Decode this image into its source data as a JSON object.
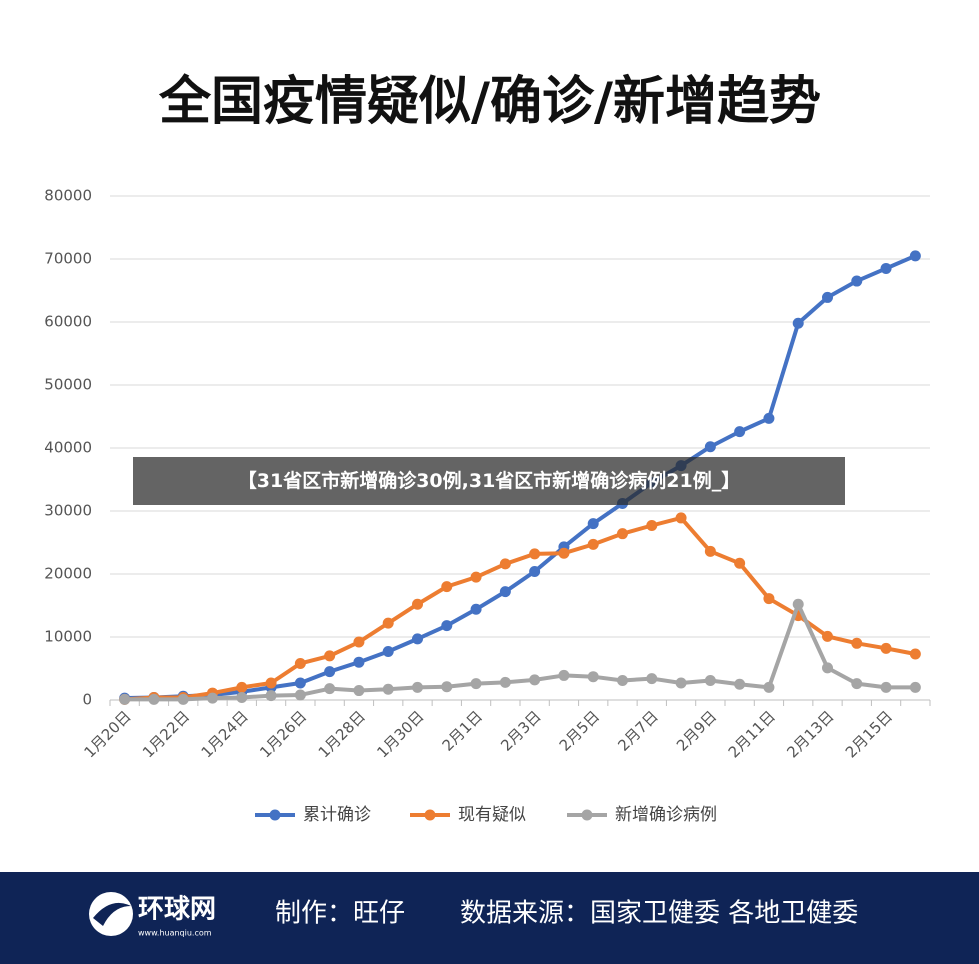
{
  "chart_data": {
    "type": "line",
    "title": "全国疫情疑似/确诊/新增趋势",
    "categories": [
      "1月20日",
      null,
      "1月22日",
      null,
      "1月24日",
      null,
      "1月26日",
      null,
      "1月28日",
      null,
      "1月30日",
      null,
      "2月1日",
      null,
      "2月3日",
      null,
      "2月5日",
      null,
      "2月7日",
      null,
      "2月9日",
      null,
      "2月11日",
      null,
      "2月13日",
      null,
      "2月15日",
      null
    ],
    "series": [
      {
        "name": "累计确诊",
        "color": "#4472c4",
        "values": [
          300,
          400,
          600,
          800,
          1300,
          2000,
          2700,
          4500,
          6000,
          7700,
          9700,
          11800,
          14400,
          17200,
          20400,
          24300,
          28000,
          31200,
          34500,
          37200,
          40200,
          42600,
          44700,
          59800,
          63900,
          66500,
          68500,
          70500
        ]
      },
      {
        "name": "现有疑似",
        "color": "#ed7d31",
        "values": [
          100,
          400,
          400,
          1100,
          2000,
          2700,
          5800,
          7000,
          9200,
          12200,
          15200,
          18000,
          19500,
          21600,
          23200,
          23300,
          24700,
          26400,
          27700,
          28900,
          23600,
          21700,
          16100,
          13400,
          10100,
          9000,
          8200,
          7300
        ]
      },
      {
        "name": "新增确诊病例",
        "color": "#a5a5a5",
        "values": [
          100,
          100,
          100,
          300,
          400,
          700,
          800,
          1800,
          1500,
          1700,
          2000,
          2100,
          2600,
          2800,
          3200,
          3900,
          3700,
          3100,
          3400,
          2700,
          3100,
          2500,
          2000,
          15200,
          5100,
          2600,
          2000,
          2000
        ]
      }
    ],
    "ylim": [
      0,
      80000
    ],
    "yticks": [
      0,
      10000,
      20000,
      30000,
      40000,
      50000,
      60000,
      70000,
      80000
    ],
    "grid": true,
    "legend": "bottom"
  },
  "overlay": "【31省区市新增确诊30例,31省区市新增确诊病例21例_】",
  "footer": {
    "logo": "环球网",
    "logo_url": "www.huanqiu.com",
    "author": "制作：旺仔",
    "source": "数据来源：国家卫健委 各地卫健委"
  }
}
